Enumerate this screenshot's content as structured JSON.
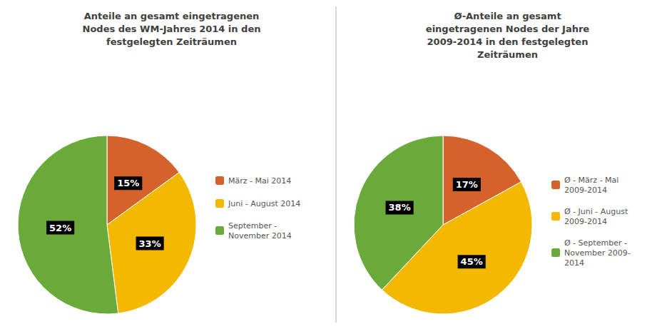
{
  "chart_data": [
    {
      "type": "pie",
      "title": "Anteile an gesamt eingetragenen\nNodes des WM-Jahres 2014 in den\nfestgelegten Zeiträumen",
      "categories": [
        "März - Mai 2014",
        "Juni - August 2014",
        "September -\nNovember 2014"
      ],
      "values": [
        15,
        33,
        52
      ],
      "value_labels": [
        "15%",
        "33%",
        "52%"
      ],
      "colors": [
        "#d4622a",
        "#f5b800",
        "#6aaa3a"
      ],
      "data_labels": true,
      "legend": "right"
    },
    {
      "type": "pie",
      "title": "Ø-Anteile an gesamt\neingetragenen Nodes der Jahre\n2009-2014 in den festgelegten\nZeiträumen",
      "categories": [
        "Ø - März - Mai\n2009-2014",
        "Ø - Juni - August\n2009-2014",
        "Ø - September -\nNovember 2009-\n2014"
      ],
      "values": [
        17,
        45,
        38
      ],
      "value_labels": [
        "17%",
        "45%",
        "38%"
      ],
      "colors": [
        "#d4622a",
        "#f5b800",
        "#6aaa3a"
      ],
      "data_labels": true,
      "legend": "right"
    }
  ]
}
